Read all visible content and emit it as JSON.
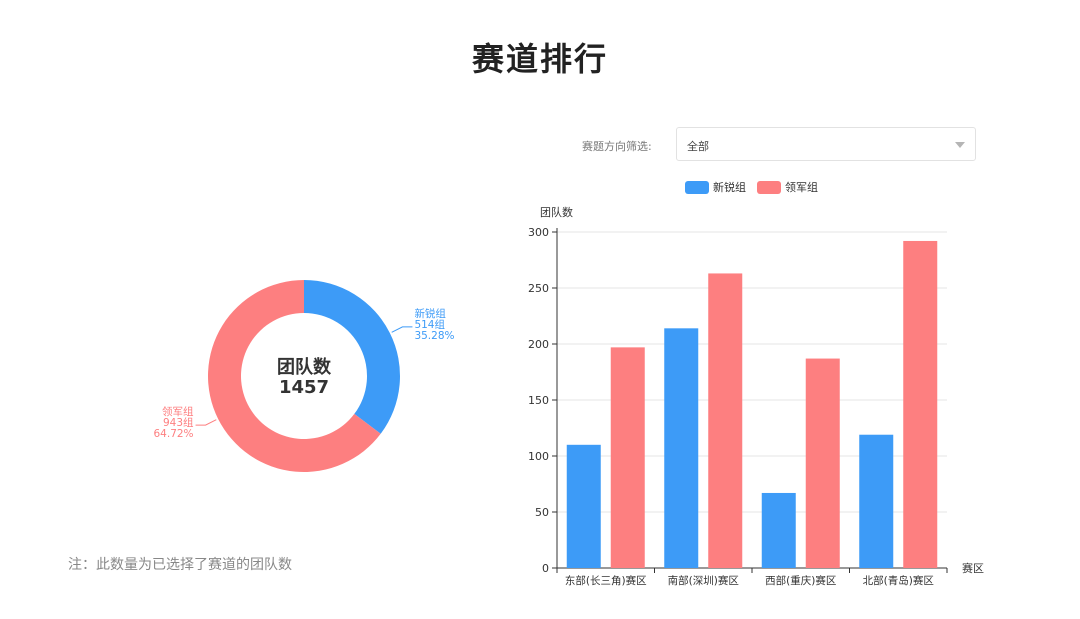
{
  "page": {
    "title": "赛道排行",
    "note": "注：此数量为已选择了赛道的团队数"
  },
  "filter": {
    "label": "赛题方向筛选:",
    "value": "全部"
  },
  "colors": {
    "blue": "#3d9bf7",
    "red": "#fd7f80",
    "grid": "#e6e6e6",
    "axis": "#333333"
  },
  "chart_data": [
    {
      "type": "pie",
      "variant": "donut",
      "center_title": "团队数",
      "center_value": "1457",
      "slices": [
        {
          "name": "新锐组",
          "value": 514,
          "value_label": "514组",
          "percent_label": "35.28%",
          "color": "#3d9bf7"
        },
        {
          "name": "领军组",
          "value": 943,
          "value_label": "943组",
          "percent_label": "64.72%",
          "color": "#fd7f80"
        }
      ]
    },
    {
      "type": "bar",
      "categories": [
        "东部(长三角)赛区",
        "南部(深圳)赛区",
        "西部(重庆)赛区",
        "北部(青岛)赛区"
      ],
      "series": [
        {
          "name": "新锐组",
          "color": "#3d9bf7",
          "values": [
            110,
            214,
            67,
            119
          ]
        },
        {
          "name": "领军组",
          "color": "#fd7f80",
          "values": [
            197,
            263,
            187,
            292
          ]
        }
      ],
      "ylabel": "团队数",
      "xlabel": "赛区",
      "ylim": [
        0,
        300
      ],
      "yticks": [
        0,
        50,
        100,
        150,
        200,
        250,
        300
      ],
      "grid": true,
      "legend": "top"
    }
  ]
}
